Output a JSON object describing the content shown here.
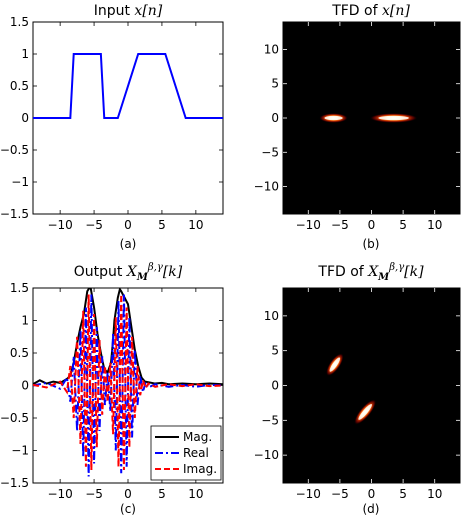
{
  "colors": {
    "input_line": "#0000ff",
    "mag_line": "#000000",
    "real_line": "#0000ff",
    "imag_line": "#ff0000",
    "tfd_background": "#000000",
    "tfd_hot": "#ffffff",
    "tfd_mid": "#ff3300"
  },
  "chart_data": [
    {
      "type": "line",
      "panel": "a",
      "title_prefix": "Input ",
      "title_math": "x[n]",
      "sub_label": "(a)",
      "xlim": [
        -14,
        14
      ],
      "ylim": [
        -1.5,
        1.5
      ],
      "x_ticks": [
        -10,
        -5,
        0,
        5,
        10
      ],
      "y_ticks": [
        -1.5,
        -1,
        -0.5,
        0,
        0.5,
        1,
        1.5
      ],
      "x_tick_labels": [
        "−10",
        "−5",
        "0",
        "5",
        "10"
      ],
      "y_tick_labels": [
        "−1.5",
        "−1",
        "−0.5",
        "0",
        "0.5",
        "1",
        "1.5"
      ],
      "series": [
        {
          "color_key": "input_line",
          "style": "solid",
          "x": [
            -14,
            -8.5,
            -8,
            -4,
            -3.5,
            -1.5,
            1.5,
            5.5,
            8.5,
            14
          ],
          "y": [
            0,
            0,
            1,
            1,
            0,
            0,
            1,
            1,
            0,
            0
          ]
        }
      ]
    },
    {
      "type": "heatmap",
      "panel": "b",
      "title_prefix": "TFD of ",
      "title_math": "x[n]",
      "sub_label": "(b)",
      "xlim": [
        -14,
        14
      ],
      "ylim": [
        -14,
        14
      ],
      "x_ticks": [
        -10,
        -5,
        0,
        5,
        10
      ],
      "y_ticks": [
        -10,
        -5,
        0,
        5,
        10
      ],
      "x_tick_labels": [
        "−10",
        "−5",
        "0",
        "5",
        "10"
      ],
      "y_tick_labels": [
        "−10",
        "−5",
        "0",
        "5",
        "10"
      ],
      "blobs": [
        {
          "cx": -6.0,
          "cy": 0,
          "len": 3.5,
          "wid": 0.8,
          "angle": 0,
          "intensity": 1.0
        },
        {
          "cx": 3.5,
          "cy": 0,
          "len": 6.5,
          "wid": 0.8,
          "angle": 0,
          "intensity": 1.0
        }
      ]
    },
    {
      "type": "line",
      "panel": "c",
      "title_prefix": "Output ",
      "title_math": "X",
      "title_sub": "M",
      "title_sup": "β,γ",
      "title_suffix": "[k]",
      "sub_label": "(c)",
      "xlim": [
        -14,
        14
      ],
      "ylim": [
        -1.5,
        1.5
      ],
      "x_ticks": [
        -10,
        -5,
        0,
        5,
        10
      ],
      "y_ticks": [
        -1.5,
        -1,
        -0.5,
        0,
        0.5,
        1,
        1.5
      ],
      "x_tick_labels": [
        "−10",
        "−5",
        "0",
        "5",
        "10"
      ],
      "y_tick_labels": [
        "−1.5",
        "−1",
        "−0.5",
        "0",
        "0.5",
        "1",
        "1.5"
      ],
      "series": [
        {
          "name": "Mag.",
          "color_key": "mag_line",
          "style": "solid",
          "x": [
            -14,
            -13,
            -12,
            -11,
            -10,
            -9,
            -8.5,
            -8,
            -7.5,
            -7,
            -6.5,
            -6,
            -5.7,
            -5.5,
            -5,
            -4.5,
            -4,
            -3.5,
            -3,
            -2.5,
            -2.2,
            -2,
            -1.5,
            -1.2,
            -1,
            -0.5,
            0,
            0.5,
            1,
            1.5,
            2,
            2.5,
            3,
            4,
            5,
            6,
            8,
            10,
            12,
            14
          ],
          "y": [
            0.02,
            0.08,
            0.03,
            0.06,
            0.04,
            0.1,
            0.15,
            0.35,
            0.65,
            0.9,
            1.1,
            1.45,
            1.5,
            1.5,
            1.2,
            0.8,
            0.5,
            0.25,
            0.2,
            0.35,
            0.7,
            1.0,
            1.35,
            1.48,
            1.45,
            1.35,
            1.25,
            0.9,
            0.55,
            0.3,
            0.12,
            0.06,
            0.05,
            0.03,
            0.04,
            0.02,
            0.03,
            0.02,
            0.03,
            0.02
          ]
        },
        {
          "name": "Real",
          "color_key": "real_line",
          "style": "dashdot",
          "x": [
            -14,
            -12,
            -10,
            -9,
            -8.5,
            -8,
            -7.5,
            -7,
            -6.6,
            -6.2,
            -5.8,
            -5.4,
            -5,
            -4.6,
            -4.2,
            -3.8,
            -3.4,
            -3,
            -2.6,
            -2.2,
            -1.8,
            -1.4,
            -1,
            -0.6,
            -0.2,
            0.2,
            0.6,
            1,
            1.4,
            1.8,
            2.2,
            2.6,
            3,
            4,
            6,
            8,
            10,
            12,
            14
          ],
          "y": [
            0.0,
            0.04,
            -0.05,
            0.12,
            -0.25,
            0.45,
            -0.7,
            0.85,
            -1.1,
            1.2,
            -1.4,
            1.4,
            -1.2,
            0.9,
            -0.7,
            0.45,
            -0.3,
            0.2,
            -0.4,
            0.8,
            -1.0,
            1.3,
            -1.35,
            1.4,
            -1.25,
            1.05,
            -0.8,
            0.55,
            -0.3,
            0.15,
            -0.1,
            0.05,
            -0.03,
            0.02,
            -0.02,
            0.01,
            -0.02,
            0.01,
            0.0
          ]
        },
        {
          "name": "Imag.",
          "color_key": "imag_line",
          "style": "dashed",
          "x": [
            -14,
            -12,
            -10,
            -9,
            -8.5,
            -8,
            -7.5,
            -7,
            -6.6,
            -6.2,
            -5.8,
            -5.4,
            -5,
            -4.6,
            -4.2,
            -3.8,
            -3.4,
            -3,
            -2.6,
            -2.2,
            -1.8,
            -1.4,
            -1,
            -0.6,
            -0.2,
            0.2,
            0.6,
            1,
            1.4,
            1.8,
            2.2,
            2.6,
            3,
            4,
            6,
            8,
            10,
            12,
            14
          ],
          "y": [
            0.01,
            -0.03,
            0.06,
            -0.1,
            0.3,
            -0.5,
            0.75,
            -0.9,
            1.15,
            -1.25,
            1.4,
            -1.3,
            1.1,
            -0.95,
            0.7,
            -0.45,
            0.3,
            -0.25,
            0.35,
            -0.75,
            1.05,
            -1.25,
            1.4,
            -1.3,
            1.2,
            -0.95,
            0.75,
            -0.5,
            0.3,
            -0.15,
            0.08,
            -0.04,
            0.03,
            -0.02,
            0.02,
            -0.01,
            0.02,
            -0.01,
            0.0
          ]
        }
      ],
      "legend": {
        "position": "bottom-right"
      }
    },
    {
      "type": "heatmap",
      "panel": "d",
      "title_prefix": "TFD of ",
      "title_math": "X",
      "title_sub": "M",
      "title_sup": "β,γ",
      "title_suffix": "[k]",
      "sub_label": "(d)",
      "xlim": [
        -14,
        14
      ],
      "ylim": [
        -14,
        14
      ],
      "x_ticks": [
        -10,
        -5,
        0,
        5,
        10
      ],
      "y_ticks": [
        -10,
        -5,
        0,
        5,
        10
      ],
      "x_tick_labels": [
        "−10",
        "−5",
        "0",
        "5",
        "10"
      ],
      "y_tick_labels": [
        "−10",
        "−5",
        "0",
        "5",
        "10"
      ],
      "blobs": [
        {
          "cx": -5.8,
          "cy": 3.0,
          "len": 3.2,
          "wid": 0.9,
          "angle": -55,
          "intensity": 1.0
        },
        {
          "cx": -1.0,
          "cy": -3.8,
          "len": 4.0,
          "wid": 0.9,
          "angle": -50,
          "intensity": 1.0
        }
      ]
    }
  ]
}
